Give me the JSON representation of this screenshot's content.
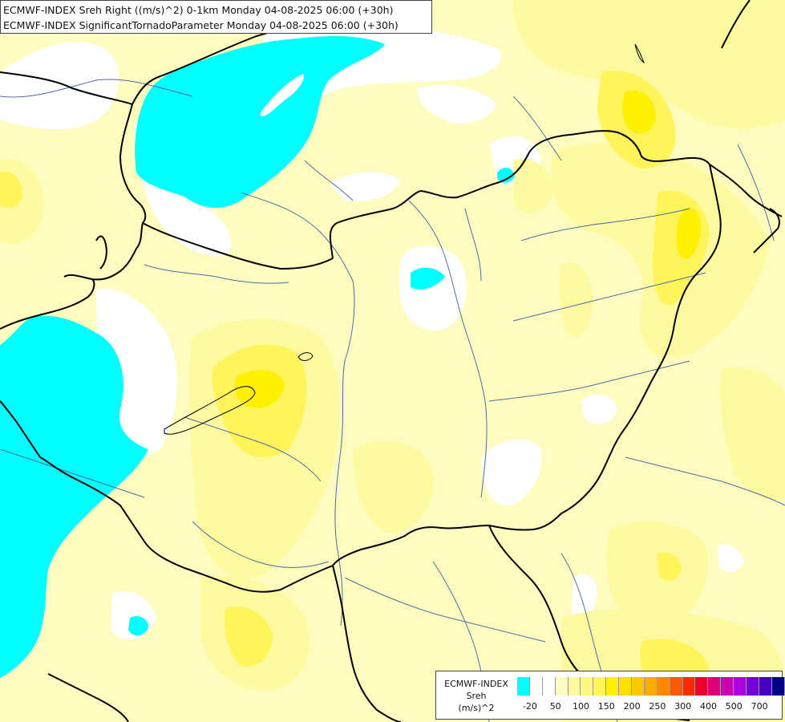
{
  "title": {
    "line1": "ECMWF-INDEX Sreh Right ((m/s)^2) 0-1km Monday 04-08-2025 06:00 (+30h)",
    "line2": "ECMWF-INDEX SignificantTornadoParameter Monday 04-08-2025 06:00 (+30h)"
  },
  "legend": {
    "line1": "ECMWF-INDEX",
    "line2": "Sreh",
    "line3": "(m/s)^2",
    "colors": [
      "#00ffff",
      "#ffffff",
      "#ffffff",
      "#fffcc0",
      "#fffaa0",
      "#fff880",
      "#fff45a",
      "#fff000",
      "#ffe000",
      "#ffc800",
      "#ffaa00",
      "#ff8800",
      "#ff5a00",
      "#ff2a00",
      "#ee0030",
      "#dd0077",
      "#cc00aa",
      "#aa00dd",
      "#7700dd",
      "#4400bb",
      "#000080"
    ],
    "ticks": [
      {
        "label": "-20",
        "index": 1
      },
      {
        "label": "50",
        "index": 3
      },
      {
        "label": "100",
        "index": 5
      },
      {
        "label": "150",
        "index": 7
      },
      {
        "label": "200",
        "index": 9
      },
      {
        "label": "250",
        "index": 11
      },
      {
        "label": "300",
        "index": 13
      },
      {
        "label": "400",
        "index": 15
      },
      {
        "label": "500",
        "index": 17
      },
      {
        "label": "700",
        "index": 19
      }
    ]
  },
  "map": {
    "base_color": "#fffcc0",
    "pale_color": "#fffaa0",
    "yellow_color": "#fff45a",
    "strong_yellow_color": "#fff000",
    "cyan_color": "#00ffff",
    "white_color": "#ffffff",
    "border_color": "#000000",
    "river_color": "#4a6fa0"
  }
}
